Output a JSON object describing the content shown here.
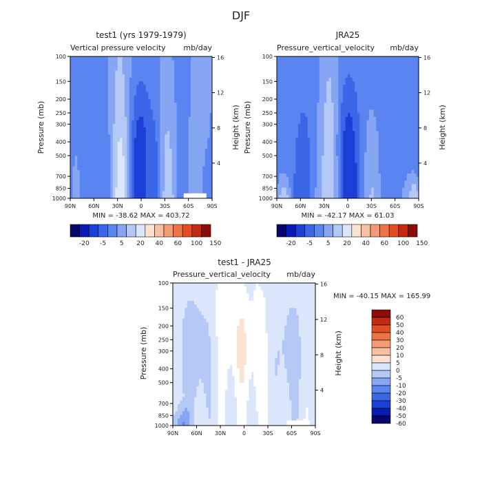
{
  "figure": {
    "title": "DJF"
  },
  "chart_data": [
    {
      "type": "heatmap",
      "title": "test1 (yrs 1979-1979)",
      "subtitle_left": "Vertical pressure velocity",
      "subtitle_right": "mb/day",
      "ylabel": "Pressure (mb)",
      "ylabel_right": "Height (km)",
      "x_ticks": [
        "90N",
        "60N",
        "30N",
        "0",
        "30S",
        "60S",
        "90S"
      ],
      "y_ticks": [
        "100",
        "150",
        "200",
        "250",
        "300",
        "400",
        "500",
        "700",
        "850",
        "1000"
      ],
      "y_ticks_right": [
        "16",
        "12",
        "8",
        "4"
      ],
      "min_max_text": "MIN = -38.62   MAX = 403.72",
      "colorbar_labels": [
        "-20",
        "-5",
        "5",
        "20",
        "40",
        "60",
        "100",
        "150"
      ],
      "colorbar_orientation": "horizontal",
      "colors": [
        "#06066e",
        "#0a1ab4",
        "#1c3fd6",
        "#3a66e8",
        "#5a85f0",
        "#86a6f4",
        "#b4c8f6",
        "#dce6fa",
        "#fbe2d2",
        "#f8c0a3",
        "#f49a76",
        "#ee7346",
        "#e24e24",
        "#c42a12",
        "#8c0c08"
      ],
      "pattern": "model"
    },
    {
      "type": "heatmap",
      "title": "JRA25",
      "subtitle_left": "Pressure_vertical_velocity",
      "subtitle_right": "mb/day",
      "ylabel": "Pressure (mb)",
      "ylabel_right": "Height (km)",
      "x_ticks": [
        "90N",
        "60N",
        "30N",
        "0",
        "30S",
        "60S",
        "90S"
      ],
      "y_ticks": [
        "100",
        "150",
        "200",
        "250",
        "300",
        "400",
        "500",
        "700",
        "850",
        "1000"
      ],
      "y_ticks_right": [
        "16",
        "12",
        "8",
        "4"
      ],
      "min_max_text": "MIN = -42.17   MAX =  61.03",
      "colorbar_labels": [
        "-20",
        "-5",
        "5",
        "20",
        "40",
        "60",
        "100",
        "150"
      ],
      "colorbar_orientation": "horizontal",
      "colors": [
        "#06066e",
        "#0a1ab4",
        "#1c3fd6",
        "#3a66e8",
        "#5a85f0",
        "#86a6f4",
        "#b4c8f6",
        "#dce6fa",
        "#fbe2d2",
        "#f8c0a3",
        "#f49a76",
        "#ee7346",
        "#e24e24",
        "#c42a12",
        "#8c0c08"
      ],
      "pattern": "obs"
    },
    {
      "type": "heatmap",
      "title": "test1 - JRA25",
      "subtitle_left": "Pressure_vertical_velocity",
      "subtitle_right": "mb/day",
      "ylabel": "Pressure (mb)",
      "ylabel_right": "Height (km)",
      "x_ticks": [
        "90N",
        "60N",
        "30N",
        "0",
        "30S",
        "60S",
        "90S"
      ],
      "y_ticks": [
        "100",
        "150",
        "200",
        "250",
        "300",
        "400",
        "500",
        "700",
        "850",
        "1000"
      ],
      "y_ticks_right": [
        "16",
        "12",
        "8",
        "4"
      ],
      "min_max_text": "MIN = -40.15   MAX = 165.99",
      "colorbar_labels": [
        "60",
        "50",
        "40",
        "30",
        "20",
        "10",
        "5",
        "0",
        "-5",
        "-10",
        "-20",
        "-30",
        "-40",
        "-50",
        "-60"
      ],
      "colorbar_orientation": "vertical",
      "colors": [
        "#8c0c08",
        "#c42a12",
        "#e24e24",
        "#ee7346",
        "#f49a76",
        "#f8c0a3",
        "#fbe2d2",
        "#ffffff",
        "#dce6fa",
        "#b4c8f6",
        "#86a6f4",
        "#5a85f0",
        "#3a66e8",
        "#1c3fd6",
        "#0a1ab4",
        "#06066e"
      ],
      "pattern": "diff"
    }
  ]
}
